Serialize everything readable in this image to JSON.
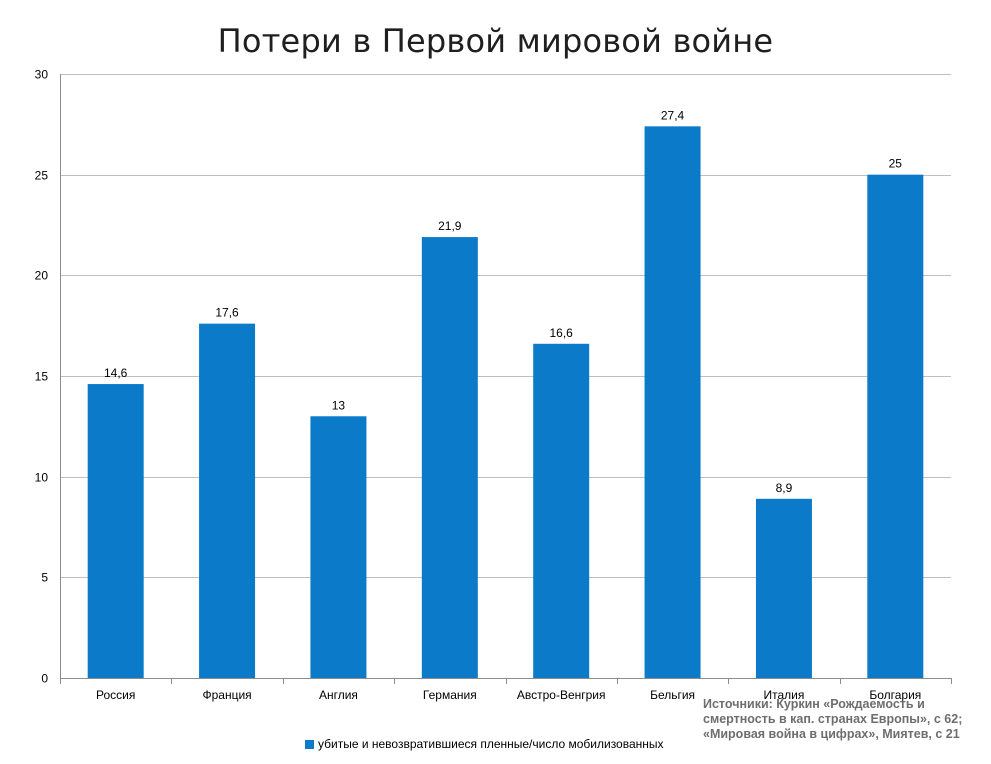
{
  "colors": {
    "bar": "#0a7ac9",
    "grid": "#bfbfbf",
    "axis": "#8c8c8c"
  },
  "chart_data": {
    "type": "bar",
    "title": "Потери в Первой мировой войне",
    "categories": [
      "Россия",
      "Франция",
      "Англия",
      "Германия",
      "Австро-Венгрия",
      "Бельгия",
      "Италия",
      "Болгария"
    ],
    "series": [
      {
        "name": "убитые и невозвратившиеся пленные/число мобилизованных",
        "values": [
          14.6,
          17.6,
          13,
          21.9,
          16.6,
          27.4,
          8.9,
          25
        ],
        "value_labels": [
          "14,6",
          "17,6",
          "13",
          "21,9",
          "16,6",
          "27,4",
          "8,9",
          "25"
        ]
      }
    ],
    "ylim": [
      0,
      30
    ],
    "yticks": [
      0,
      5,
      10,
      15,
      20,
      25,
      30
    ],
    "grid": true,
    "legend_position": "bottom-center"
  },
  "source_note": "Источники: Куркин «Рождаемость и смертность в кап. странах Европы», с 62; «Мировая война в цифрах», Миятев, с 21"
}
